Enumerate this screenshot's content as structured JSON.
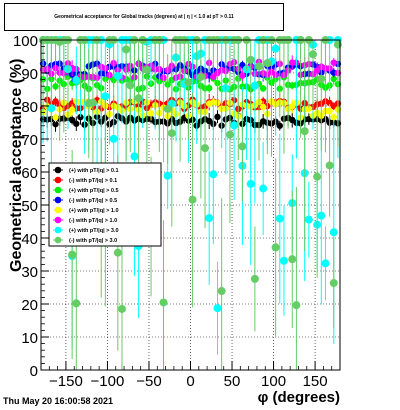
{
  "title": "Geometrical acceptance for Global tracks (degrees) at | η | < 1.0 at pT > 0.11",
  "timestamp": "Thu May 20 16:00:58 2021",
  "chart_data": {
    "type": "scatter",
    "title": "Geometrical acceptance for Global tracks (degrees) at | η | < 1.0 at pT > 0.11",
    "xlabel": "φ (degrees)",
    "ylabel": "Geometrical acceptance (%)",
    "xlim": [
      -180,
      180
    ],
    "ylim": [
      0,
      100
    ],
    "xticks": [
      -150,
      -100,
      -50,
      0,
      50,
      100,
      150
    ],
    "yticks": [
      0,
      10,
      20,
      30,
      40,
      50,
      60,
      70,
      80,
      90,
      100
    ],
    "grid": true,
    "legend_position": "left",
    "series": [
      {
        "name": "(+) with pT/|q| > 0.1",
        "color": "#000000",
        "mean": 75.5,
        "spread": 1.5
      },
      {
        "name": "(-) with pT/|q| > 0.1",
        "color": "#ff0000",
        "mean": 80.5,
        "spread": 1.5
      },
      {
        "name": "(+) with pT/|q| > 0.5",
        "color": "#00ee00",
        "mean": 87,
        "spread": 2
      },
      {
        "name": "(-) with pT/|q| > 0.5",
        "color": "#0000ff",
        "mean": 91,
        "spread": 2
      },
      {
        "name": "(+) with pT/|q| > 1.0",
        "color": "#ffff00",
        "mean": 79,
        "spread": 2.5
      },
      {
        "name": "(-) with pT/|q| > 1.0",
        "color": "#ff00ff",
        "mean": 91,
        "spread": 2.5
      },
      {
        "name": "(+) with pT/|q| > 3.0",
        "color": "#00ffff",
        "mean": 60,
        "spread": 25
      },
      {
        "name": "(-) with pT/|q| > 3.0",
        "color": "#66cc66",
        "mean": 62,
        "spread": 25
      }
    ]
  }
}
